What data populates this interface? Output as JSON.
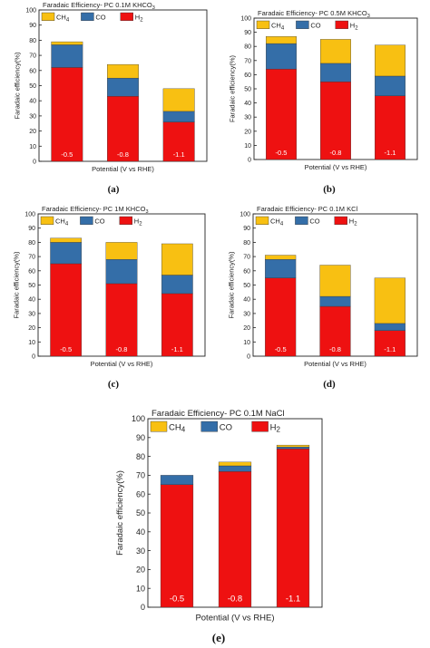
{
  "colors": {
    "CH4": "#f8c012",
    "CO": "#346ea8",
    "H2": "#ee1111",
    "axis": "#222222"
  },
  "chart_data": [
    {
      "type": "bar",
      "stacked": true,
      "caption": "(a)",
      "title": "Faradaic Efficiency- PC 0.1M KHCO",
      "title_sub": "3",
      "ylabel": "Faradaic efficiency(%)",
      "xlabel": "Potential (V vs RHE)",
      "ylim": [
        0,
        100
      ],
      "yticks": [
        "0",
        "10",
        "20",
        "30",
        "40",
        "50",
        "60",
        "70",
        "80",
        "90",
        "100"
      ],
      "categories": [
        "-0.5",
        "-0.8",
        "-1.1"
      ],
      "legend": [
        "CH4",
        "CO",
        "H2"
      ],
      "series": [
        {
          "name": "H2",
          "values": [
            62,
            43,
            26
          ]
        },
        {
          "name": "CO",
          "values": [
            15,
            12,
            7
          ]
        },
        {
          "name": "CH4",
          "values": [
            2,
            9,
            15
          ]
        }
      ]
    },
    {
      "type": "bar",
      "stacked": true,
      "caption": "(b)",
      "title": "Faradaic Efficiency- PC 0.5M KHCO",
      "title_sub": "3",
      "ylabel": "Faradaic efficiency(%)",
      "xlabel": "Potential (V vs RHE)",
      "ylim": [
        0,
        100
      ],
      "yticks": [
        "0",
        "10",
        "20",
        "30",
        "40",
        "50",
        "60",
        "70",
        "80",
        "90",
        "100"
      ],
      "categories": [
        "-0.5",
        "-0.8",
        "-1.1"
      ],
      "legend": [
        "CH4",
        "CO",
        "H2"
      ],
      "series": [
        {
          "name": "H2",
          "values": [
            64,
            55,
            45
          ]
        },
        {
          "name": "CO",
          "values": [
            18,
            13,
            14
          ]
        },
        {
          "name": "CH4",
          "values": [
            5,
            17,
            22
          ]
        }
      ]
    },
    {
      "type": "bar",
      "stacked": true,
      "caption": "(c)",
      "title": "Faradaic Efficiency- PC 1M KHCO",
      "title_sub": "3",
      "ylabel": "Faradaic efficiency(%)",
      "xlabel": "Potential (V vs RHE)",
      "ylim": [
        0,
        100
      ],
      "yticks": [
        "0",
        "10",
        "20",
        "30",
        "40",
        "50",
        "60",
        "70",
        "80",
        "90",
        "100"
      ],
      "categories": [
        "-0.5",
        "-0.8",
        "-1.1"
      ],
      "legend": [
        "CH4",
        "CO",
        "H2"
      ],
      "series": [
        {
          "name": "H2",
          "values": [
            65,
            51,
            44
          ]
        },
        {
          "name": "CO",
          "values": [
            15,
            17,
            13
          ]
        },
        {
          "name": "CH4",
          "values": [
            3,
            12,
            22
          ]
        }
      ]
    },
    {
      "type": "bar",
      "stacked": true,
      "caption": "(d)",
      "title": "Faradaic Efficiency- PC 0.1M KCl",
      "title_sub": "",
      "ylabel": "Faradaic efficiency(%)",
      "xlabel": "Potential (V vs RHE)",
      "ylim": [
        0,
        100
      ],
      "yticks": [
        "0",
        "10",
        "20",
        "30",
        "40",
        "50",
        "60",
        "70",
        "80",
        "90",
        "100"
      ],
      "categories": [
        "-0.5",
        "-0.8",
        "-1.1"
      ],
      "legend": [
        "CH4",
        "CO",
        "H2"
      ],
      "series": [
        {
          "name": "H2",
          "values": [
            55,
            35,
            18
          ]
        },
        {
          "name": "CO",
          "values": [
            13,
            7,
            5
          ]
        },
        {
          "name": "CH4",
          "values": [
            3,
            22,
            32
          ]
        }
      ]
    },
    {
      "type": "bar",
      "stacked": true,
      "caption": "(e)",
      "title": "Faradaic Efficiency- PC 0.1M NaCl",
      "title_sub": "",
      "ylabel": "Faradaic efficiency(%)",
      "xlabel": "Potential (V vs RHE)",
      "ylim": [
        0,
        100
      ],
      "yticks": [
        "0",
        "10",
        "20",
        "30",
        "40",
        "50",
        "60",
        "70",
        "80",
        "90",
        "100"
      ],
      "categories": [
        "-0.5",
        "-0.8",
        "-1.1"
      ],
      "legend": [
        "CH4",
        "CO",
        "H2"
      ],
      "series": [
        {
          "name": "H2",
          "values": [
            65,
            72,
            84
          ]
        },
        {
          "name": "CO",
          "values": [
            5,
            3,
            1
          ]
        },
        {
          "name": "CH4",
          "values": [
            0,
            2,
            1
          ]
        }
      ]
    }
  ]
}
